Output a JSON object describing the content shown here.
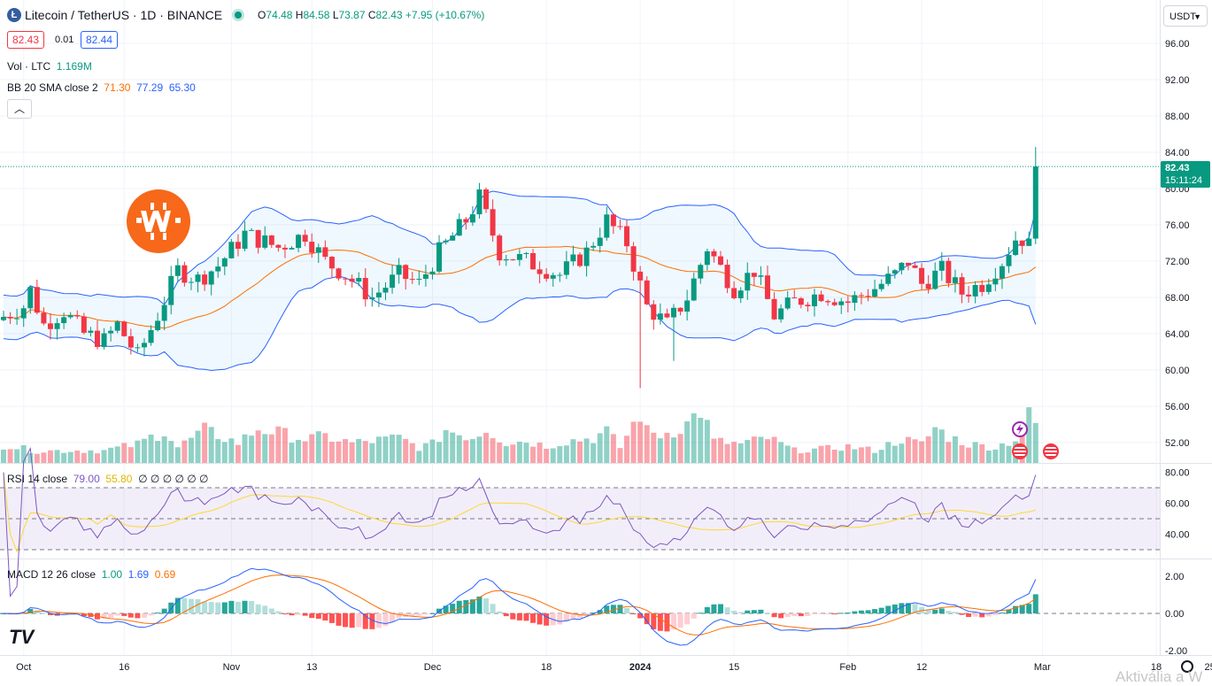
{
  "header": {
    "symbol": "Litecoin / TetherUS · 1D · BINANCE",
    "open_label": "O",
    "open": "74.48",
    "high_label": "H",
    "high": "84.58",
    "low_label": "L",
    "low": "73.87",
    "close_label": "C",
    "close": "82.43",
    "change": "+7.95 (+10.67%)",
    "bid": "82.43",
    "spread": "0.01",
    "ask": "82.44"
  },
  "indicators": {
    "vol_label": "Vol · LTC",
    "vol_value": "1.169M",
    "bb_label": "BB 20 SMA close 2",
    "bb_basis": "71.30",
    "bb_upper": "77.29",
    "bb_lower": "65.30",
    "rsi_label": "RSI 14 close",
    "rsi_value": "79.00",
    "rsi_ma": "55.80",
    "rsi_extras": "∅ ∅ ∅ ∅ ∅ ∅",
    "macd_label": "MACD 12 26 close",
    "macd_hist": "1.00",
    "macd_line": "1.69",
    "macd_signal": "0.69"
  },
  "currency": "USDT",
  "last_price_label": {
    "price": "82.43",
    "countdown": "15:11:24"
  },
  "watermark": "Aktivália a W",
  "colors": {
    "up": "#089981",
    "down": "#f23645",
    "bb_band": "#2962ff",
    "bb_basis": "#ff6d00",
    "rsi": "#7e57c2",
    "rsi_ma": "#fdd835",
    "macd": "#2962ff",
    "signal": "#ff6d00"
  },
  "chart_data": {
    "type": "candlestick",
    "price_axis": {
      "ticks": [
        "96.00",
        "92.00",
        "88.00",
        "84.00",
        "80.00",
        "76.00",
        "72.00",
        "68.00",
        "64.00",
        "60.00",
        "56.00",
        "52.00"
      ],
      "ylim": [
        49.8,
        98.5
      ]
    },
    "rsi_axis": {
      "ticks": [
        "80.00",
        "60.00",
        "40.00"
      ],
      "levels": [
        70,
        50,
        30
      ]
    },
    "macd_axis": {
      "ticks": [
        "2.00",
        "0.00",
        "-2.00"
      ]
    },
    "x_ticks": [
      {
        "label": "Oct",
        "bar": 3
      },
      {
        "label": "16",
        "bar": 18
      },
      {
        "label": "Nov",
        "bar": 34
      },
      {
        "label": "13",
        "bar": 46
      },
      {
        "label": "Dec",
        "bar": 64
      },
      {
        "label": "18",
        "bar": 81
      },
      {
        "label": "2024",
        "bar": 95
      },
      {
        "label": "15",
        "bar": 109
      },
      {
        "label": "Feb",
        "bar": 126
      },
      {
        "label": "12",
        "bar": 137
      },
      {
        "label": "Mar",
        "bar": 155
      },
      {
        "label": "18",
        "bar": 172
      },
      {
        "label": "25",
        "bar": 180
      }
    ],
    "bars_count": 155,
    "last_bar": {
      "open": 74.48,
      "high": 84.58,
      "low": 73.87,
      "close": 82.43
    },
    "price_anchors": [
      [
        0,
        65.5
      ],
      [
        4,
        67.0
      ],
      [
        5,
        68.8
      ],
      [
        7,
        65.0
      ],
      [
        10,
        66.5
      ],
      [
        13,
        64.0
      ],
      [
        16,
        63.2
      ],
      [
        18,
        65.0
      ],
      [
        21,
        61.5
      ],
      [
        24,
        66.0
      ],
      [
        27,
        71.0
      ],
      [
        30,
        70.0
      ],
      [
        33,
        71.5
      ],
      [
        37,
        75.0
      ],
      [
        42,
        73.5
      ],
      [
        46,
        75.0
      ],
      [
        49,
        72.0
      ],
      [
        52,
        70.5
      ],
      [
        56,
        68.0
      ],
      [
        60,
        70.5
      ],
      [
        63,
        69.5
      ],
      [
        66,
        73.0
      ],
      [
        70,
        76.5
      ],
      [
        72,
        79.0
      ],
      [
        75,
        73.0
      ],
      [
        79,
        72.0
      ],
      [
        84,
        70.5
      ],
      [
        88,
        73.0
      ],
      [
        91,
        76.5
      ],
      [
        94,
        74.0
      ],
      [
        97,
        67.0
      ],
      [
        100,
        65.0
      ],
      [
        103,
        68.0
      ],
      [
        106,
        73.5
      ],
      [
        110,
        69.0
      ],
      [
        113,
        71.0
      ],
      [
        116,
        66.0
      ],
      [
        119,
        67.5
      ],
      [
        123,
        68.5
      ],
      [
        127,
        67.5
      ],
      [
        131,
        69.0
      ],
      [
        134,
        70.5
      ],
      [
        136,
        72.0
      ],
      [
        138,
        69.5
      ],
      [
        141,
        71.0
      ],
      [
        144,
        68.5
      ],
      [
        147,
        69.5
      ],
      [
        150,
        72.0
      ],
      [
        152,
        74.5
      ],
      [
        153,
        74.48
      ]
    ],
    "volume_anchors": [
      [
        0,
        2.8
      ],
      [
        5,
        1.9
      ],
      [
        10,
        2.0
      ],
      [
        15,
        2.0
      ],
      [
        20,
        3.0
      ],
      [
        24,
        5.2
      ],
      [
        26,
        2.5
      ],
      [
        30,
        5.2
      ],
      [
        35,
        3.2
      ],
      [
        38,
        5.5
      ],
      [
        41,
        4.8
      ],
      [
        45,
        3.8
      ],
      [
        48,
        4.2
      ],
      [
        52,
        3.2
      ],
      [
        55,
        3.5
      ],
      [
        59,
        4.0
      ],
      [
        62,
        2.5
      ],
      [
        64,
        3.0
      ],
      [
        66,
        5.3
      ],
      [
        70,
        4.1
      ],
      [
        72,
        5.5
      ],
      [
        75,
        3.2
      ],
      [
        78,
        3.5
      ],
      [
        81,
        2.7
      ],
      [
        84,
        3.5
      ],
      [
        88,
        4.0
      ],
      [
        90,
        5.0
      ],
      [
        92,
        2.5
      ],
      [
        95,
        8.0
      ],
      [
        96,
        5.0
      ],
      [
        98,
        4.5
      ],
      [
        100,
        5.2
      ],
      [
        102,
        6.2
      ],
      [
        104,
        8.5
      ],
      [
        106,
        3.5
      ],
      [
        110,
        3.0
      ],
      [
        114,
        4.0
      ],
      [
        118,
        2.0
      ],
      [
        122,
        2.2
      ],
      [
        126,
        2.6
      ],
      [
        130,
        2.0
      ],
      [
        134,
        3.8
      ],
      [
        137,
        3.0
      ],
      [
        139,
        5.6
      ],
      [
        141,
        4.2
      ],
      [
        144,
        3.0
      ],
      [
        148,
        2.5
      ],
      [
        151,
        3.8
      ],
      [
        152,
        6.5
      ],
      [
        153,
        7.4
      ],
      [
        154,
        6.2
      ]
    ],
    "volume_ylim": [
      0,
      12
    ],
    "series": [
      {
        "name": "Vol · LTC"
      },
      {
        "name": "BB 20 SMA close 2"
      },
      {
        "name": "RSI 14 close"
      },
      {
        "name": "MACD 12 26 close"
      }
    ]
  }
}
